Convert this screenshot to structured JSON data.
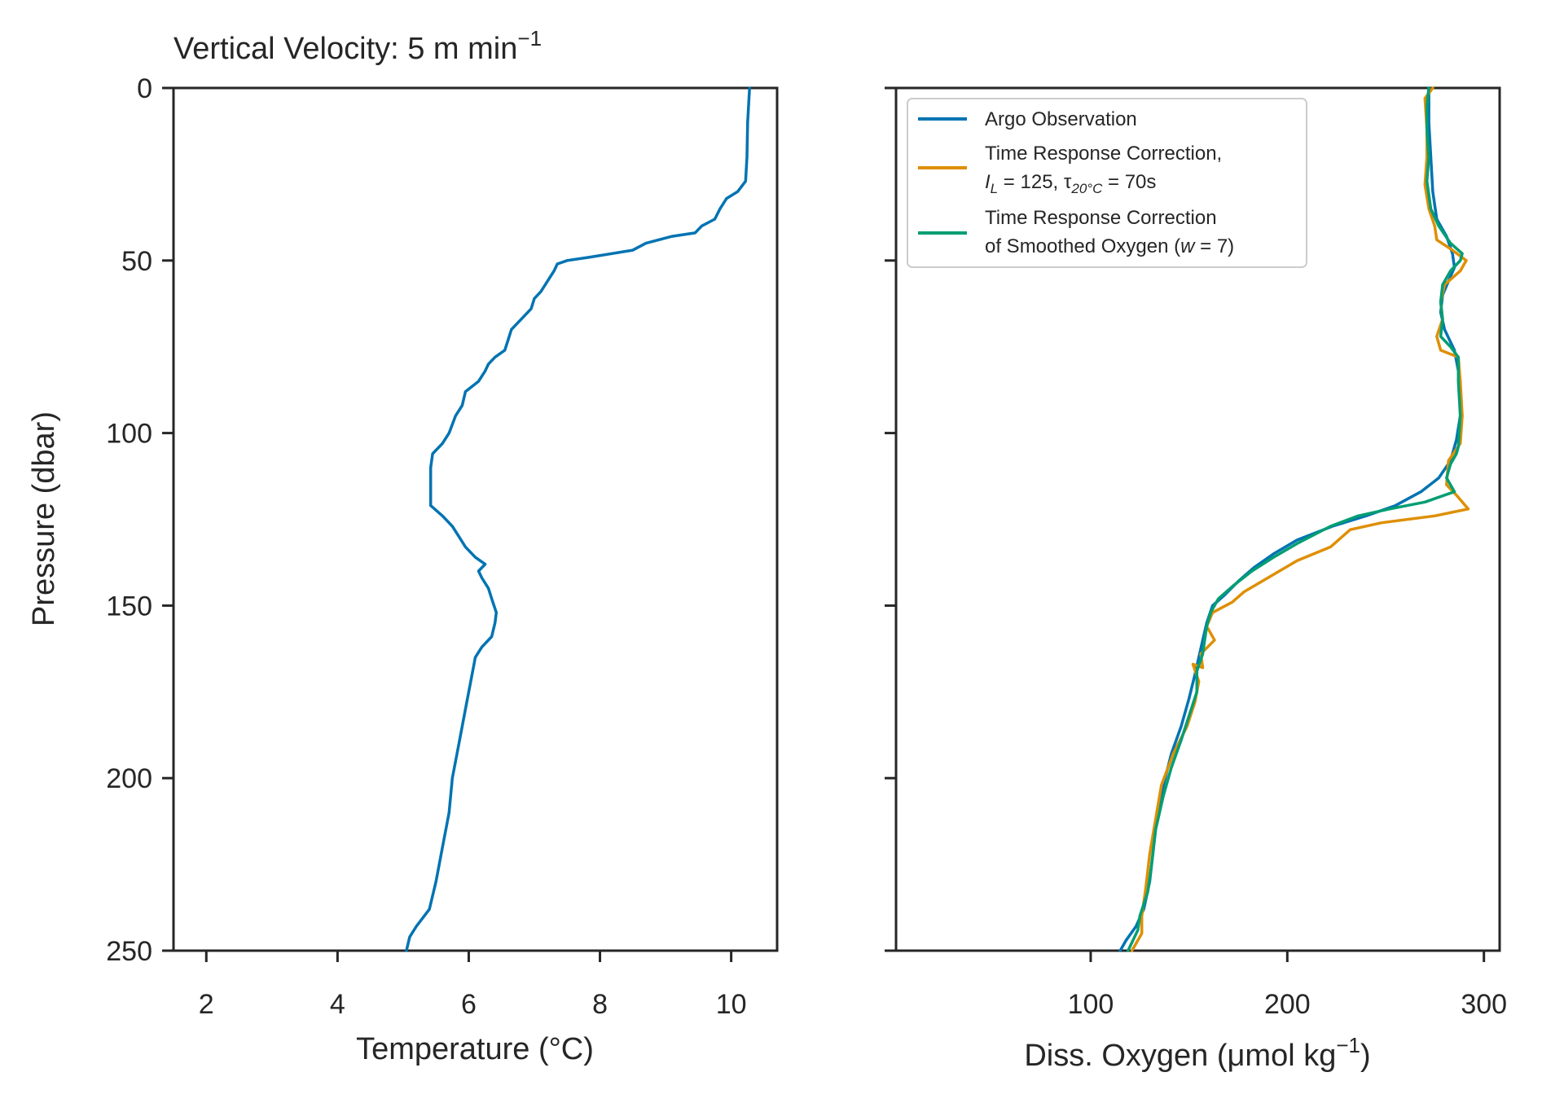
{
  "chart_data": [
    {
      "type": "line",
      "title_main": "Vertical Velocity: 5 m min",
      "title_sup": "−1",
      "xlabel": "Temperature (°C)",
      "ylabel": "Pressure (dbar)",
      "xlim": [
        1.5,
        10.7
      ],
      "ylim": [
        250,
        0
      ],
      "xticks": [
        2,
        4,
        6,
        8,
        10
      ],
      "yticks": [
        0,
        50,
        100,
        150,
        200,
        250
      ],
      "grid": false,
      "series": [
        {
          "color": "#0173b2",
          "points": [
            [
              10.28,
              0
            ],
            [
              10.25,
              10
            ],
            [
              10.24,
              20
            ],
            [
              10.22,
              27
            ],
            [
              10.1,
              30
            ],
            [
              9.93,
              32
            ],
            [
              9.83,
              35
            ],
            [
              9.75,
              38
            ],
            [
              9.55,
              40
            ],
            [
              9.45,
              42
            ],
            [
              9.1,
              43
            ],
            [
              8.7,
              45
            ],
            [
              8.5,
              47
            ],
            [
              7.85,
              49
            ],
            [
              7.5,
              50
            ],
            [
              7.35,
              51
            ],
            [
              7.3,
              53
            ],
            [
              7.2,
              56
            ],
            [
              7.1,
              59
            ],
            [
              7.0,
              61
            ],
            [
              6.95,
              64
            ],
            [
              6.8,
              67
            ],
            [
              6.65,
              70
            ],
            [
              6.6,
              73
            ],
            [
              6.55,
              76
            ],
            [
              6.4,
              78
            ],
            [
              6.3,
              80
            ],
            [
              6.25,
              82
            ],
            [
              6.15,
              85
            ],
            [
              5.95,
              88
            ],
            [
              5.9,
              92
            ],
            [
              5.8,
              95
            ],
            [
              5.7,
              100
            ],
            [
              5.6,
              103
            ],
            [
              5.45,
              106
            ],
            [
              5.42,
              110
            ],
            [
              5.42,
              115
            ],
            [
              5.42,
              121
            ],
            [
              5.6,
              124
            ],
            [
              5.75,
              127
            ],
            [
              5.85,
              130
            ],
            [
              5.95,
              133
            ],
            [
              6.1,
              136
            ],
            [
              6.25,
              138
            ],
            [
              6.15,
              140
            ],
            [
              6.2,
              142
            ],
            [
              6.3,
              145
            ],
            [
              6.35,
              148
            ],
            [
              6.42,
              152
            ],
            [
              6.4,
              155
            ],
            [
              6.35,
              159
            ],
            [
              6.2,
              162
            ],
            [
              6.1,
              165
            ],
            [
              6.05,
              170
            ],
            [
              5.95,
              180
            ],
            [
              5.85,
              190
            ],
            [
              5.75,
              200
            ],
            [
              5.7,
              210
            ],
            [
              5.6,
              220
            ],
            [
              5.5,
              230
            ],
            [
              5.4,
              238
            ],
            [
              5.2,
              243
            ],
            [
              5.1,
              246
            ],
            [
              5.05,
              250
            ]
          ]
        }
      ]
    },
    {
      "type": "line",
      "xlabel_main": "Diss. Oxygen (μmol kg",
      "xlabel_sup": "−1",
      "xlabel_end": ")",
      "xlim": [
        1,
        308
      ],
      "ylim": [
        250,
        0
      ],
      "xticks": [
        100,
        200,
        300
      ],
      "yticks": [
        0,
        50,
        100,
        150,
        200,
        250
      ],
      "grid": false,
      "legend_position": "top-left",
      "series": [
        {
          "name": "Argo Observation",
          "color": "#0173b2",
          "points": [
            [
              272,
              0
            ],
            [
              272,
              10
            ],
            [
              273,
              20
            ],
            [
              274,
              30
            ],
            [
              276,
              38
            ],
            [
              281,
              43
            ],
            [
              284,
              48
            ],
            [
              285,
              52
            ],
            [
              282,
              56
            ],
            [
              279,
              60
            ],
            [
              278,
              65
            ],
            [
              280,
              70
            ],
            [
              285,
              76
            ],
            [
              288,
              85
            ],
            [
              288,
              95
            ],
            [
              286,
              102
            ],
            [
              283,
              108
            ],
            [
              277,
              113
            ],
            [
              268,
              117
            ],
            [
              255,
              121
            ],
            [
              240,
              124
            ],
            [
              223,
              127
            ],
            [
              205,
              131
            ],
            [
              193,
              135
            ],
            [
              183,
              139
            ],
            [
              175,
              143
            ],
            [
              168,
              147
            ],
            [
              162,
              150
            ],
            [
              159,
              155
            ],
            [
              157,
              160
            ],
            [
              155,
              165
            ],
            [
              153,
              170
            ],
            [
              150,
              177
            ],
            [
              146,
              185
            ],
            [
              141,
              193
            ],
            [
              137,
              202
            ],
            [
              134,
              210
            ],
            [
              132,
              220
            ],
            [
              130,
              230
            ],
            [
              127,
              238
            ],
            [
              123,
              243
            ],
            [
              118,
              247
            ],
            [
              115,
              250
            ]
          ]
        },
        {
          "name_line1": "Time Response Correction,",
          "name_line2_pre": "I",
          "name_line2_sub1": "L",
          "name_line2_mid": " = 125, τ",
          "name_line2_sub2": "20°C",
          "name_line2_end": " = 70s",
          "color": "#de8f05",
          "points": [
            [
              274,
              0
            ],
            [
              270,
              3
            ],
            [
              271,
              12
            ],
            [
              271,
              20
            ],
            [
              270,
              28
            ],
            [
              272,
              35
            ],
            [
              275,
              40
            ],
            [
              276,
              44
            ],
            [
              284,
              47
            ],
            [
              291,
              50
            ],
            [
              288,
              53
            ],
            [
              280,
              57
            ],
            [
              278,
              62
            ],
            [
              279,
              67
            ],
            [
              276,
              72
            ],
            [
              278,
              76
            ],
            [
              287,
              78
            ],
            [
              288,
              85
            ],
            [
              289,
              95
            ],
            [
              288,
              103
            ],
            [
              282,
              108
            ],
            [
              281,
              115
            ],
            [
              286,
              118
            ],
            [
              292,
              122
            ],
            [
              275,
              124
            ],
            [
              248,
              126
            ],
            [
              232,
              128
            ],
            [
              222,
              133
            ],
            [
              205,
              137
            ],
            [
              190,
              142
            ],
            [
              178,
              146
            ],
            [
              172,
              149
            ],
            [
              162,
              152
            ],
            [
              159,
              156
            ],
            [
              163,
              160
            ],
            [
              156,
              164
            ],
            [
              157,
              168
            ],
            [
              152,
              167
            ],
            [
              155,
              172
            ],
            [
              153,
              178
            ],
            [
              149,
              185
            ],
            [
              142,
              193
            ],
            [
              136,
              202
            ],
            [
              133,
              212
            ],
            [
              130,
              222
            ],
            [
              128,
              232
            ],
            [
              126,
              240
            ],
            [
              126,
              245
            ],
            [
              121,
              250
            ]
          ]
        },
        {
          "name_line1": "Time Response Correction",
          "name_line2_pre": "of Smoothed Oxygen (",
          "name_line2_italic": "w",
          "name_line2_end": " = 7)",
          "color": "#029e73",
          "points": [
            [
              272,
              0
            ],
            [
              271,
              5
            ],
            [
              271,
              12
            ],
            [
              272,
              20
            ],
            [
              271,
              27
            ],
            [
              273,
              35
            ],
            [
              277,
              40
            ],
            [
              283,
              45
            ],
            [
              289,
              48
            ],
            [
              288,
              50
            ],
            [
              283,
              53
            ],
            [
              279,
              57
            ],
            [
              278,
              62
            ],
            [
              279,
              67
            ],
            [
              278,
              72
            ],
            [
              283,
              75
            ],
            [
              287,
              78
            ],
            [
              287,
              85
            ],
            [
              288,
              95
            ],
            [
              287,
              104
            ],
            [
              286,
              106
            ],
            [
              283,
              109
            ],
            [
              281,
              113
            ],
            [
              285,
              117
            ],
            [
              270,
              120
            ],
            [
              252,
              122
            ],
            [
              236,
              124
            ],
            [
              222,
              127
            ],
            [
              205,
              132
            ],
            [
              193,
              136
            ],
            [
              182,
              140
            ],
            [
              173,
              144
            ],
            [
              165,
              148
            ],
            [
              161,
              152
            ],
            [
              159,
              156
            ],
            [
              158,
              160
            ],
            [
              157,
              164
            ],
            [
              154,
              169
            ],
            [
              154,
              175
            ],
            [
              150,
              182
            ],
            [
              146,
              189
            ],
            [
              141,
              197
            ],
            [
              137,
              205
            ],
            [
              133,
              215
            ],
            [
              131,
              225
            ],
            [
              129,
              233
            ],
            [
              125,
              240
            ],
            [
              124,
              244
            ],
            [
              119,
              250
            ]
          ]
        }
      ]
    }
  ]
}
